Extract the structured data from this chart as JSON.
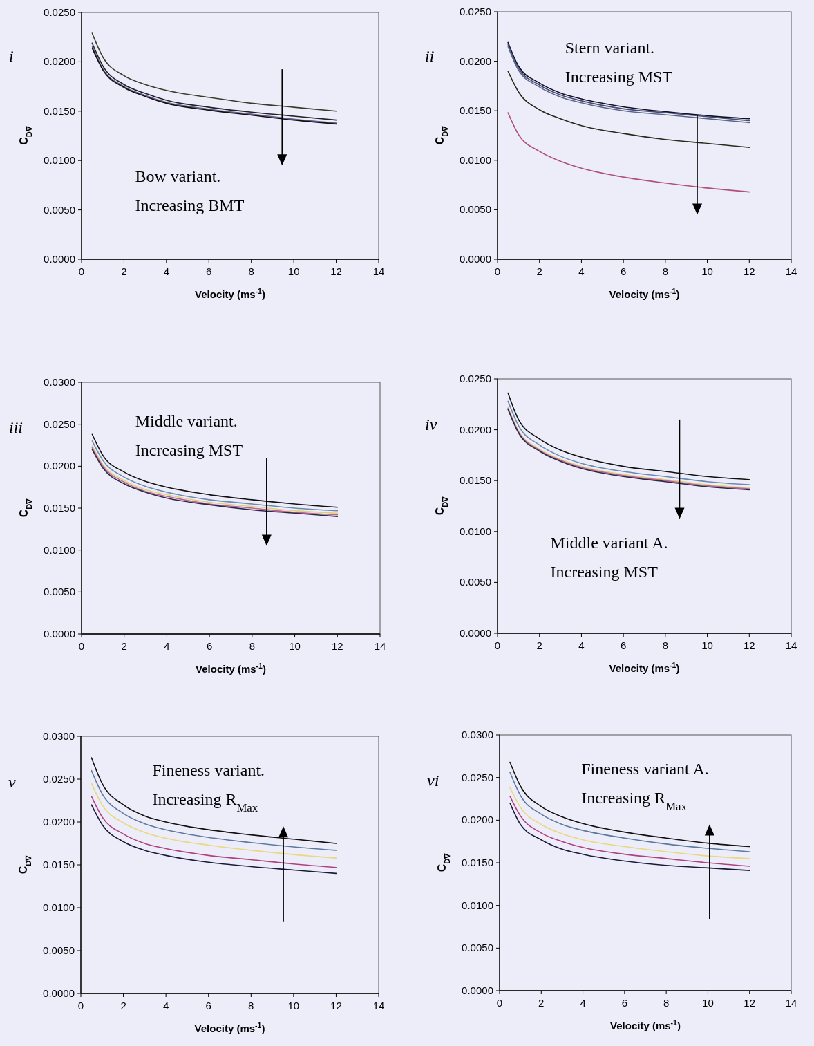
{
  "chart_data": [
    {
      "type": "line",
      "xlabel": "Velocity (ms$^{-1}$)",
      "ylabel": "C$_{D∇}$",
      "annotations": [
        "i",
        "Bow variant.",
        "Increasing BMT"
      ],
      "x": [
        0.5,
        1,
        2,
        3,
        4,
        6,
        8,
        10,
        12
      ],
      "xlim": [
        0,
        14
      ],
      "xticks": [
        0,
        2,
        4,
        6,
        8,
        10,
        12,
        14
      ],
      "ylim": [
        0,
        0.025
      ],
      "yticks": [
        {
          "value": 0,
          "label": "0.0000"
        },
        {
          "value": 0.005,
          "label": "0.0050"
        },
        {
          "value": 0.01,
          "label": "0.0100"
        },
        {
          "value": 0.015,
          "label": "0.0150"
        },
        {
          "value": 0.02,
          "label": "0.0200"
        },
        {
          "value": 0.025,
          "label": "0.0250"
        }
      ],
      "series": [
        {
          "color": "#3a3a2a",
          "values": [
            0.0229,
            0.0205,
            0.0186,
            0.0177,
            0.0171,
            0.0164,
            0.0158,
            0.0154,
            0.015
          ]
        },
        {
          "color": "#222222",
          "values": [
            0.0219,
            0.0196,
            0.0177,
            0.0168,
            0.0161,
            0.0154,
            0.0149,
            0.0145,
            0.0141
          ]
        },
        {
          "color": "#6a5a9a",
          "values": [
            0.0216,
            0.0193,
            0.0175,
            0.0166,
            0.0159,
            0.0152,
            0.0147,
            0.0142,
            0.0138
          ]
        },
        {
          "color": "#111111",
          "values": [
            0.0214,
            0.0192,
            0.0174,
            0.0165,
            0.0158,
            0.0151,
            0.0146,
            0.0141,
            0.0137
          ]
        }
      ]
    },
    {
      "type": "line",
      "xlabel": "Velocity (ms$^{-1}$)",
      "ylabel": "C$_{D∇}$",
      "annotations": [
        "ii",
        "Stern variant.",
        "Increasing MST"
      ],
      "x": [
        0.5,
        1,
        2,
        3,
        4,
        6,
        8,
        10,
        12
      ],
      "xlim": [
        0,
        14
      ],
      "xticks": [
        0,
        2,
        4,
        6,
        8,
        10,
        12,
        14
      ],
      "ylim": [
        0,
        0.025
      ],
      "yticks": [
        {
          "value": 0,
          "label": "0.0000"
        },
        {
          "value": 0.005,
          "label": "0.0050"
        },
        {
          "value": 0.01,
          "label": "0.0100"
        },
        {
          "value": 0.015,
          "label": "0.0150"
        },
        {
          "value": 0.02,
          "label": "0.0200"
        },
        {
          "value": 0.025,
          "label": "0.0250"
        }
      ],
      "series": [
        {
          "color": "#111122",
          "values": [
            0.0219,
            0.0195,
            0.0178,
            0.0168,
            0.0162,
            0.0154,
            0.0149,
            0.0145,
            0.0142
          ]
        },
        {
          "color": "#4a4a7a",
          "values": [
            0.0217,
            0.0193,
            0.0176,
            0.0166,
            0.016,
            0.0152,
            0.0148,
            0.0144,
            0.014
          ]
        },
        {
          "color": "#5a6a8a",
          "values": [
            0.0215,
            0.0191,
            0.0174,
            0.0164,
            0.0158,
            0.015,
            0.0146,
            0.0142,
            0.0138
          ]
        },
        {
          "color": "#2a2a1a",
          "values": [
            0.019,
            0.0169,
            0.0151,
            0.0142,
            0.0135,
            0.0127,
            0.0121,
            0.0117,
            0.0113
          ]
        },
        {
          "color": "#b0507a",
          "values": [
            0.0148,
            0.0126,
            0.0109,
            0.0099,
            0.0092,
            0.0083,
            0.0077,
            0.0072,
            0.0068
          ]
        }
      ]
    },
    {
      "type": "line",
      "xlabel": "Velocity (ms$^{-1}$)",
      "ylabel": "C$_{D∇}$",
      "annotations": [
        "iii",
        "Middle variant.",
        "Increasing MST"
      ],
      "x": [
        0.5,
        1,
        2,
        3,
        4,
        6,
        8,
        10,
        12
      ],
      "xlim": [
        0,
        14
      ],
      "xticks": [
        0,
        2,
        4,
        6,
        8,
        10,
        12,
        14
      ],
      "ylim": [
        0,
        0.03
      ],
      "yticks": [
        {
          "value": 0,
          "label": "0.0000"
        },
        {
          "value": 0.005,
          "label": "0.0050"
        },
        {
          "value": 0.01,
          "label": "0.0100"
        },
        {
          "value": 0.015,
          "label": "0.0150"
        },
        {
          "value": 0.02,
          "label": "0.0200"
        },
        {
          "value": 0.025,
          "label": "0.0250"
        },
        {
          "value": 0.03,
          "label": "0.0300"
        }
      ],
      "series": [
        {
          "color": "#111111",
          "values": [
            0.0238,
            0.0213,
            0.0193,
            0.0182,
            0.0175,
            0.0166,
            0.016,
            0.0155,
            0.0151
          ]
        },
        {
          "color": "#6a8ab0",
          "values": [
            0.023,
            0.0207,
            0.0187,
            0.0176,
            0.0169,
            0.016,
            0.0155,
            0.015,
            0.0147
          ]
        },
        {
          "color": "#e0d080",
          "values": [
            0.0224,
            0.0202,
            0.0183,
            0.0172,
            0.0166,
            0.0157,
            0.0152,
            0.0147,
            0.0144
          ]
        },
        {
          "color": "#c06090",
          "values": [
            0.0222,
            0.02,
            0.0181,
            0.017,
            0.0164,
            0.0155,
            0.015,
            0.0145,
            0.0142
          ]
        },
        {
          "color": "#2a2a4a",
          "values": [
            0.022,
            0.0198,
            0.0179,
            0.0169,
            0.0162,
            0.0154,
            0.0148,
            0.0144,
            0.014
          ]
        }
      ]
    },
    {
      "type": "line",
      "xlabel": "Velocity (ms$^{-1}$)",
      "ylabel": "C$_{D∇}$",
      "annotations": [
        "iv",
        "Middle variant A.",
        "Increasing MST"
      ],
      "x": [
        0.5,
        1,
        2,
        3,
        4,
        6,
        8,
        10,
        12
      ],
      "xlim": [
        0,
        14
      ],
      "xticks": [
        0,
        2,
        4,
        6,
        8,
        10,
        12,
        14
      ],
      "ylim": [
        0,
        0.025
      ],
      "yticks": [
        {
          "value": 0,
          "label": "0.0000"
        },
        {
          "value": 0.005,
          "label": "0.0050"
        },
        {
          "value": 0.01,
          "label": "0.0100"
        },
        {
          "value": 0.015,
          "label": "0.0150"
        },
        {
          "value": 0.02,
          "label": "0.0200"
        },
        {
          "value": 0.025,
          "label": "0.0250"
        }
      ],
      "series": [
        {
          "color": "#111111",
          "values": [
            0.0236,
            0.021,
            0.0191,
            0.018,
            0.0173,
            0.0164,
            0.0159,
            0.0154,
            0.0151
          ]
        },
        {
          "color": "#6a8ab0",
          "values": [
            0.0228,
            0.0204,
            0.0185,
            0.0174,
            0.0167,
            0.0159,
            0.0154,
            0.0149,
            0.0146
          ]
        },
        {
          "color": "#e0d080",
          "values": [
            0.0222,
            0.0199,
            0.0181,
            0.0171,
            0.0164,
            0.0156,
            0.0151,
            0.0146,
            0.0143
          ]
        },
        {
          "color": "#c06090",
          "values": [
            0.0221,
            0.0198,
            0.018,
            0.017,
            0.0163,
            0.0155,
            0.015,
            0.0145,
            0.0142
          ]
        },
        {
          "color": "#2a2a4a",
          "values": [
            0.022,
            0.0197,
            0.0179,
            0.0169,
            0.0162,
            0.0154,
            0.0149,
            0.0144,
            0.0141
          ]
        }
      ]
    },
    {
      "type": "line",
      "xlabel": "Velocity (ms$^{-1}$)",
      "ylabel": "C$_{D∇}$",
      "annotations": [
        "v",
        "Fineness variant.",
        "Increasing R$_{Max}$"
      ],
      "x": [
        0.5,
        1,
        2,
        3,
        4,
        6,
        8,
        10,
        12
      ],
      "xlim": [
        0,
        14
      ],
      "xticks": [
        0,
        2,
        4,
        6,
        8,
        10,
        12,
        14
      ],
      "ylim": [
        0,
        0.03
      ],
      "yticks": [
        {
          "value": 0,
          "label": "0.0000"
        },
        {
          "value": 0.005,
          "label": "0.0050"
        },
        {
          "value": 0.01,
          "label": "0.0100"
        },
        {
          "value": 0.015,
          "label": "0.0150"
        },
        {
          "value": 0.02,
          "label": "0.0200"
        },
        {
          "value": 0.025,
          "label": "0.0250"
        },
        {
          "value": 0.03,
          "label": "0.0300"
        }
      ],
      "series": [
        {
          "color": "#111111",
          "values": [
            0.0275,
            0.0245,
            0.022,
            0.0207,
            0.02,
            0.0191,
            0.0185,
            0.018,
            0.0175
          ]
        },
        {
          "color": "#5a7aa0",
          "values": [
            0.026,
            0.0233,
            0.021,
            0.0198,
            0.0191,
            0.0182,
            0.0176,
            0.0171,
            0.0167
          ]
        },
        {
          "color": "#e8d880",
          "values": [
            0.0245,
            0.022,
            0.0199,
            0.0188,
            0.0181,
            0.0173,
            0.0167,
            0.0162,
            0.0158
          ]
        },
        {
          "color": "#b04080",
          "values": [
            0.023,
            0.0206,
            0.0186,
            0.0175,
            0.0169,
            0.0161,
            0.0156,
            0.0151,
            0.0147
          ]
        },
        {
          "color": "#1a1a3a",
          "values": [
            0.022,
            0.0197,
            0.0177,
            0.0167,
            0.0161,
            0.0153,
            0.0148,
            0.0144,
            0.014
          ]
        }
      ]
    },
    {
      "type": "line",
      "xlabel": "Velocity (ms$^{-1}$)",
      "ylabel": "C$_{D∇}$",
      "annotations": [
        "vi",
        "Fineness variant A.",
        "Increasing R$_{Max}$"
      ],
      "x": [
        0.5,
        1,
        2,
        3,
        4,
        6,
        8,
        10,
        12
      ],
      "xlim": [
        0,
        14
      ],
      "xticks": [
        0,
        2,
        4,
        6,
        8,
        10,
        12,
        14
      ],
      "ylim": [
        0,
        0.03
      ],
      "yticks": [
        {
          "value": 0,
          "label": "0.0000"
        },
        {
          "value": 0.005,
          "label": "0.0050"
        },
        {
          "value": 0.01,
          "label": "0.0100"
        },
        {
          "value": 0.015,
          "label": "0.0150"
        },
        {
          "value": 0.02,
          "label": "0.0200"
        },
        {
          "value": 0.025,
          "label": "0.0250"
        },
        {
          "value": 0.03,
          "label": "0.0300"
        }
      ],
      "series": [
        {
          "color": "#111111",
          "values": [
            0.0268,
            0.024,
            0.0216,
            0.0204,
            0.0196,
            0.0186,
            0.0179,
            0.0173,
            0.0169
          ]
        },
        {
          "color": "#5a7aa0",
          "values": [
            0.0256,
            0.0229,
            0.0207,
            0.0195,
            0.0188,
            0.0179,
            0.0172,
            0.0167,
            0.0163
          ]
        },
        {
          "color": "#e8d880",
          "values": [
            0.0238,
            0.0215,
            0.0195,
            0.0184,
            0.0177,
            0.0169,
            0.0163,
            0.0158,
            0.0155
          ]
        },
        {
          "color": "#b04080",
          "values": [
            0.0228,
            0.0205,
            0.0185,
            0.0175,
            0.0168,
            0.016,
            0.0155,
            0.015,
            0.0146
          ]
        },
        {
          "color": "#1a1a3a",
          "values": [
            0.022,
            0.0195,
            0.0177,
            0.0166,
            0.016,
            0.0152,
            0.0147,
            0.0144,
            0.0141
          ]
        }
      ]
    }
  ]
}
